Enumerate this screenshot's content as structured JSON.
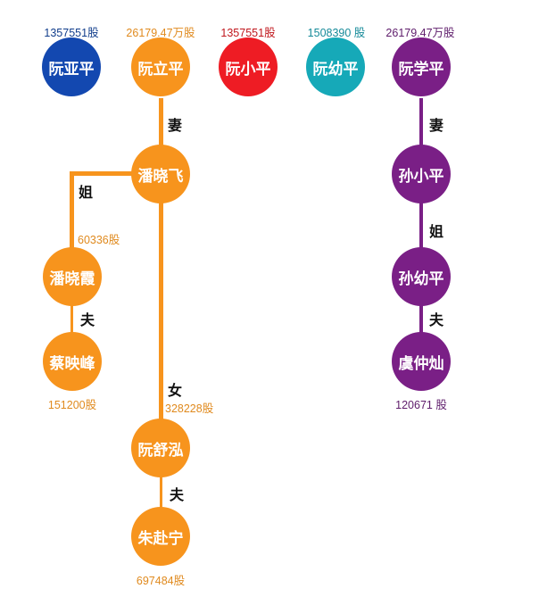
{
  "colors": {
    "orange": "#f7941d",
    "orange_text": "#e08a1e",
    "blue": "#1348b0",
    "blue_text": "#123e8c",
    "red": "#ee1c24",
    "red_text": "#c0171d",
    "teal": "#16a9b8",
    "teal_text": "#158a99",
    "purple": "#7a1f86",
    "purple_text": "#5e1c6b"
  },
  "top_row": [
    {
      "name": "阮亚平",
      "shares": "1357551股"
    },
    {
      "name": "阮立平",
      "shares": "26179.47万股"
    },
    {
      "name": "阮小平",
      "shares": "1357551股"
    },
    {
      "name": "阮幼平",
      "shares": "1508390 股"
    },
    {
      "name": "阮学平",
      "shares": "26179.47万股"
    }
  ],
  "orange_branch": {
    "pan_xiaofei": {
      "name": "潘晓飞"
    },
    "pan_xiaoxia": {
      "name": "潘晓霞",
      "shares": "60336股"
    },
    "cai_yingfeng": {
      "name": "蔡映峰",
      "shares": "151200股"
    },
    "ruan_shuhong": {
      "name": "阮舒泓",
      "shares": "328228股"
    },
    "zhu_funing": {
      "name": "朱赴宁",
      "shares": "697484股"
    }
  },
  "purple_branch": {
    "sun_xiaoping": {
      "name": "孙小平"
    },
    "sun_youping": {
      "name": "孙幼平"
    },
    "yu_zhongcan": {
      "name": "虞仲灿",
      "shares": "120671 股"
    }
  },
  "relations": {
    "lipin_wife": "妻",
    "xiaofei_sister": "姐",
    "xiaoxia_husband": "夫",
    "xiaofei_daughter": "女",
    "shuhong_husband": "夫",
    "xueping_wife": "妻",
    "xiaoping_sister": "姐",
    "youping_husband": "夫"
  }
}
